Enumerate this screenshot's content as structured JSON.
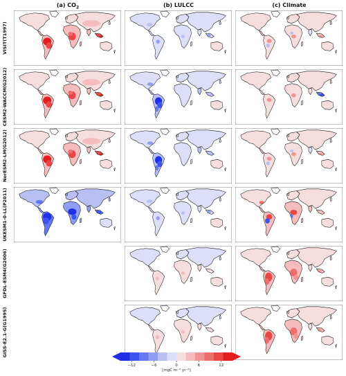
{
  "columns": [
    {
      "id": "co2",
      "label": "(a) CO",
      "sub": "2"
    },
    {
      "id": "lulcc",
      "label": "(b) LULCC",
      "sub": ""
    },
    {
      "id": "climate",
      "label": "(c) Climate",
      "sub": ""
    }
  ],
  "rows": [
    {
      "model": "VISIT(T1997)",
      "panels": [
        {
          "col": "co2",
          "scheme": "strong-red"
        },
        {
          "col": "lulcc",
          "scheme": "weak-blue"
        },
        {
          "col": "climate",
          "scheme": "mixed"
        }
      ]
    },
    {
      "model": "CESM2-WACCM(G2012)",
      "panels": [
        {
          "col": "co2",
          "scheme": "strong-red"
        },
        {
          "col": "lulcc",
          "scheme": "blue-amazon"
        },
        {
          "col": "climate",
          "scheme": "mixed-blue"
        }
      ]
    },
    {
      "model": "NorESM2-LM(G2012)",
      "panels": [
        {
          "col": "co2",
          "scheme": "strong-red"
        },
        {
          "col": "lulcc",
          "scheme": "blue-amazon"
        },
        {
          "col": "climate",
          "scheme": "mixed"
        }
      ]
    },
    {
      "model": "UKESM1-0-LL(P2011)",
      "panels": [
        {
          "col": "co2",
          "scheme": "strong-blue"
        },
        {
          "col": "lulcc",
          "scheme": "weak-blue"
        },
        {
          "col": "climate",
          "scheme": "mixed-red"
        }
      ]
    },
    {
      "model": "GFDL-ESM4(G2006)",
      "panels": [
        {
          "col": "co2",
          "scheme": "none"
        },
        {
          "col": "lulcc",
          "scheme": "near-zero"
        },
        {
          "col": "climate",
          "scheme": "red-tropics"
        }
      ]
    },
    {
      "model": "GISS-E2.1-G(G1995)",
      "panels": [
        {
          "col": "co2",
          "scheme": "none"
        },
        {
          "col": "lulcc",
          "scheme": "near-zero"
        },
        {
          "col": "climate",
          "scheme": "red-tropics"
        }
      ]
    }
  ],
  "colorbar": {
    "ticks": [
      "−12",
      "−6",
      "0",
      "6",
      "12"
    ],
    "unit": "[mgC m⁻² yr⁻²]",
    "colors": [
      "#1f2fe6",
      "#3d55ee",
      "#6478f0",
      "#8f9df2",
      "#b7bff4",
      "#dcdff7",
      "#f7dede",
      "#f4bcbc",
      "#f19494",
      "#ee6d6d",
      "#ea4646",
      "#e41e1e"
    ]
  },
  "chart_data": {
    "type": "heatmap",
    "title": "",
    "columns": [
      "(a) CO2",
      "(b) LULCC",
      "(c) Climate"
    ],
    "rows": [
      "VISIT(T1997)",
      "CESM2-WACCM(G2012)",
      "NorESM2-LM(G2012)",
      "UKESM1-0-LL(P2011)",
      "GFDL-ESM4(G2006)",
      "GISS-E2.1-G(G1995)"
    ],
    "panel_present": [
      [
        true,
        true,
        true
      ],
      [
        true,
        true,
        true
      ],
      [
        true,
        true,
        true
      ],
      [
        true,
        true,
        true
      ],
      [
        false,
        true,
        true
      ],
      [
        false,
        true,
        true
      ]
    ],
    "colorbar_range": [
      -15,
      15
    ],
    "colorbar_ticks": [
      -12,
      -6,
      0,
      6,
      12
    ],
    "colorbar_unit": "mgC m-2 yr-2",
    "extend": "both"
  }
}
